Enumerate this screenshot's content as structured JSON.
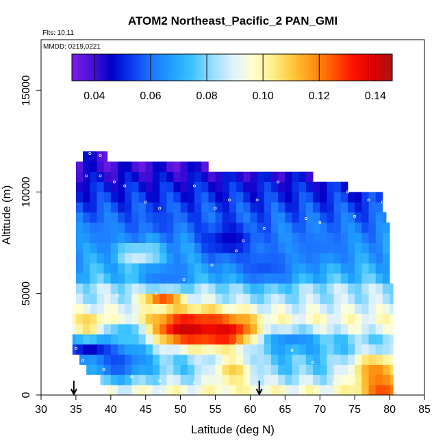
{
  "chart_data": {
    "type": "heatmap",
    "title": "ATOM2 Northeast_Pacific_2 PAN_GMI",
    "flights_note": "Flts: 10,11",
    "dates_note": "MMDD: 0219,0221",
    "xlabel": "Latitude (deg N)",
    "ylabel": "Altitude (m)",
    "xlim": [
      30,
      85
    ],
    "ylim": [
      0,
      17500
    ],
    "x_ticks": [
      30,
      35,
      40,
      45,
      50,
      55,
      60,
      65,
      70,
      75,
      80,
      85
    ],
    "y_ticks": [
      0,
      5000,
      10000,
      15000
    ],
    "colorbar": {
      "range": [
        0.032,
        0.146
      ],
      "ticks": [
        0.04,
        0.06,
        0.08,
        0.1,
        0.12,
        0.14
      ],
      "tick_labels": [
        "0.04",
        "0.06",
        "0.08",
        "0.10",
        "0.12",
        "0.14"
      ],
      "colors": [
        "#7b1ee6",
        "#4a10d8",
        "#0000c8",
        "#0a3cf0",
        "#1e78ff",
        "#1ea0ff",
        "#3cc3ff",
        "#96dcff",
        "#dcf0ff",
        "#ffffd2",
        "#fff08c",
        "#ffc83c",
        "#ff9614",
        "#ff5a00",
        "#ff1400",
        "#dc0000",
        "#aa1414"
      ]
    },
    "altitude_bins": [
      {
        "alt": 250,
        "lat_min": 39.5,
        "lat_max": 80.5,
        "value": 0.095
      },
      {
        "alt": 750,
        "lat_min": 38.5,
        "lat_max": 80.5,
        "value": 0.085
      },
      {
        "alt": 1250,
        "lat_min": 36.5,
        "lat_max": 80.5,
        "value": 0.078
      },
      {
        "alt": 1750,
        "lat_min": 35.5,
        "lat_max": 80.5,
        "value": 0.076
      },
      {
        "alt": 2250,
        "lat_min": 34.5,
        "lat_max": 80.5,
        "value": 0.074
      },
      {
        "alt": 2750,
        "lat_min": 34.5,
        "lat_max": 80.5,
        "value": 0.078
      },
      {
        "alt": 3250,
        "lat_min": 34.5,
        "lat_max": 80.5,
        "value": 0.09
      },
      {
        "alt": 3750,
        "lat_min": 34.5,
        "lat_max": 80.5,
        "value": 0.095
      },
      {
        "alt": 4250,
        "lat_min": 34.5,
        "lat_max": 80.5,
        "value": 0.09
      },
      {
        "alt": 4750,
        "lat_min": 35.0,
        "lat_max": 80.5,
        "value": 0.085
      },
      {
        "alt": 5250,
        "lat_min": 35.0,
        "lat_max": 80.5,
        "value": 0.084
      },
      {
        "alt": 5750,
        "lat_min": 35.0,
        "lat_max": 80.0,
        "value": 0.074
      },
      {
        "alt": 6250,
        "lat_min": 35.0,
        "lat_max": 80.0,
        "value": 0.071
      },
      {
        "alt": 6750,
        "lat_min": 35.0,
        "lat_max": 80.0,
        "value": 0.068
      },
      {
        "alt": 7250,
        "lat_min": 35.0,
        "lat_max": 80.0,
        "value": 0.067
      },
      {
        "alt": 7750,
        "lat_min": 35.0,
        "lat_max": 80.0,
        "value": 0.064
      },
      {
        "alt": 8250,
        "lat_min": 35.0,
        "lat_max": 80.0,
        "value": 0.061
      },
      {
        "alt": 8750,
        "lat_min": 35.0,
        "lat_max": 79.5,
        "value": 0.058
      },
      {
        "alt": 9250,
        "lat_min": 35.0,
        "lat_max": 79.0,
        "value": 0.055
      },
      {
        "alt": 9750,
        "lat_min": 35.0,
        "lat_max": 79.0,
        "value": 0.052
      },
      {
        "alt": 10250,
        "lat_min": 35.0,
        "lat_max": 74.0,
        "value": 0.049
      },
      {
        "alt": 10750,
        "lat_min": 35.0,
        "lat_max": 69.0,
        "value": 0.045
      },
      {
        "alt": 11250,
        "lat_min": 35.0,
        "lat_max": 54.0,
        "value": 0.041
      },
      {
        "alt": 11750,
        "lat_min": 36.0,
        "lat_max": 39.5,
        "value": 0.042
      }
    ],
    "anomalies": [
      {
        "lat": 51,
        "alt": 3250,
        "value": 0.142,
        "lat_spread": 5.5,
        "alt_spread": 900
      },
      {
        "lat": 56.5,
        "alt": 3100,
        "value": 0.138,
        "lat_spread": 4.5,
        "alt_spread": 800
      },
      {
        "lat": 47.5,
        "alt": 4800,
        "value": 0.13,
        "lat_spread": 2.8,
        "alt_spread": 400
      },
      {
        "lat": 39,
        "alt": 7900,
        "value": 0.062,
        "lat_spread": 3,
        "alt_spread": 800
      },
      {
        "lat": 48,
        "alt": 5900,
        "value": 0.06,
        "lat_spread": 4,
        "alt_spread": 700
      },
      {
        "lat": 57,
        "alt": 7600,
        "value": 0.045,
        "lat_spread": 4,
        "alt_spread": 900
      },
      {
        "lat": 47,
        "alt": 8600,
        "value": 0.055,
        "lat_spread": 3,
        "alt_spread": 600
      },
      {
        "lat": 62,
        "alt": 6300,
        "value": 0.056,
        "lat_spread": 5,
        "alt_spread": 1000
      },
      {
        "lat": 70,
        "alt": 7400,
        "value": 0.06,
        "lat_spread": 5,
        "alt_spread": 900
      },
      {
        "lat": 44,
        "alt": 6900,
        "value": 0.09,
        "lat_spread": 3,
        "alt_spread": 500
      },
      {
        "lat": 78,
        "alt": 1250,
        "value": 0.118,
        "lat_spread": 4,
        "alt_spread": 900
      },
      {
        "lat": 79,
        "alt": 400,
        "value": 0.128,
        "lat_spread": 3,
        "alt_spread": 500
      },
      {
        "lat": 57.5,
        "alt": 1200,
        "value": 0.11,
        "lat_spread": 3,
        "alt_spread": 800
      },
      {
        "lat": 41,
        "alt": 1600,
        "value": 0.055,
        "lat_spread": 4,
        "alt_spread": 900
      },
      {
        "lat": 37,
        "alt": 2300,
        "value": 0.045,
        "lat_spread": 3,
        "alt_spread": 400
      },
      {
        "lat": 37,
        "alt": 3500,
        "value": 0.112,
        "lat_spread": 2,
        "alt_spread": 500
      },
      {
        "lat": 66,
        "alt": 2700,
        "value": 0.064,
        "lat_spread": 4,
        "alt_spread": 500
      },
      {
        "lat": 42,
        "alt": 3100,
        "value": 0.072,
        "lat_spread": 3,
        "alt_spread": 500
      }
    ],
    "flight_track_points": [
      [
        37.0,
        11900
      ],
      [
        38.5,
        11800
      ],
      [
        40.0,
        11700
      ],
      [
        36.5,
        10800
      ],
      [
        40.5,
        10500
      ],
      [
        45.0,
        9500
      ],
      [
        47.0,
        9200
      ],
      [
        52.0,
        10300
      ],
      [
        57.0,
        9600
      ],
      [
        64.0,
        10500
      ],
      [
        74.0,
        10000
      ],
      [
        77.0,
        9600
      ],
      [
        79.0,
        9500
      ],
      [
        75.0,
        8800
      ],
      [
        68.0,
        8700
      ],
      [
        59.0,
        7600
      ],
      [
        58.0,
        7100
      ],
      [
        54.5,
        6400
      ],
      [
        50.5,
        5700
      ],
      [
        46.5,
        5000
      ],
      [
        41.0,
        4900
      ],
      [
        37.0,
        4400
      ],
      [
        35.0,
        2300
      ],
      [
        36.0,
        1700
      ],
      [
        39.0,
        1250
      ],
      [
        43.0,
        900
      ],
      [
        47.0,
        700
      ],
      [
        52.0,
        600
      ],
      [
        56.0,
        1600
      ],
      [
        58.0,
        2500
      ],
      [
        62.0,
        3100
      ],
      [
        64.0,
        4100
      ],
      [
        66.0,
        2200
      ],
      [
        69.0,
        1600
      ],
      [
        72.0,
        600
      ],
      [
        75.0,
        700
      ],
      [
        44.0,
        200
      ],
      [
        47.0,
        200
      ],
      [
        62.0,
        8200
      ],
      [
        70.0,
        8500
      ],
      [
        55.0,
        9200
      ],
      [
        42.0,
        10300
      ],
      [
        38.5,
        10800
      ],
      [
        61.0,
        9600
      ],
      [
        64.0,
        4800
      ]
    ],
    "arrow_latitudes": [
      34.7,
      61.3
    ]
  }
}
